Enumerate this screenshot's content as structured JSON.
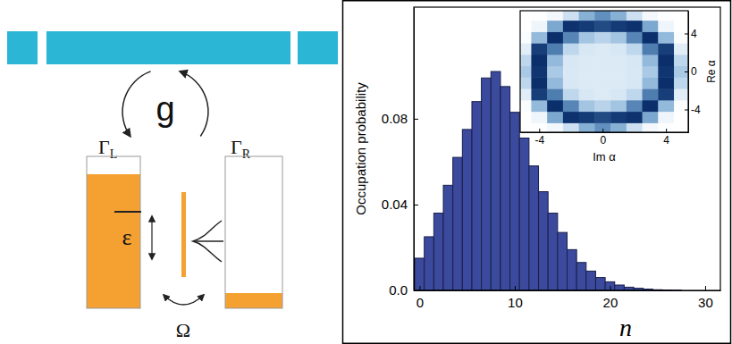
{
  "diagram": {
    "coupling": "g",
    "left_rate": {
      "symbol": "Γ",
      "sub": "L"
    },
    "right_rate": {
      "symbol": "Γ",
      "sub": "R"
    },
    "detuning": "ε",
    "tunneling": "Ω"
  },
  "chart_data": [
    {
      "type": "histogram",
      "x_label": "n",
      "y_label": "Occupation probability",
      "color": "#3b4a9c",
      "bins": [
        -0.5,
        0.5,
        1.5,
        2.5,
        3.5,
        4.5,
        5.5,
        6.5,
        7.5,
        8.5,
        9.5,
        10.5,
        11.5,
        12.5,
        13.5,
        14.5,
        15.5,
        16.5,
        17.5,
        18.5,
        19.5,
        20.5,
        21.5,
        22.5,
        23.5,
        24.5,
        25.5,
        26.5,
        27.5,
        28.5,
        29.5
      ],
      "values": [
        0.015,
        0.025,
        0.036,
        0.049,
        0.062,
        0.075,
        0.088,
        0.099,
        0.102,
        0.095,
        0.083,
        0.071,
        0.058,
        0.046,
        0.036,
        0.027,
        0.019,
        0.013,
        0.009,
        0.006,
        0.004,
        0.0025,
        0.0015,
        0.001,
        0.0006,
        0.0003,
        0.0002,
        0.0001,
        0,
        0
      ],
      "xlim": [
        -0.6,
        31.6
      ],
      "ylim": [
        0,
        0.132
      ],
      "xticks": [
        0,
        10,
        20,
        30
      ],
      "yticks": [
        {
          "value": 0,
          "label": "0.0"
        },
        0.04,
        0.08
      ]
    },
    {
      "type": "heatmap",
      "x_label": "Im α",
      "y_label": "Re α",
      "x": [
        -5,
        -4,
        -3,
        -2,
        -1,
        0,
        1,
        2,
        3,
        4,
        5
      ],
      "y": [
        -6,
        -4.8,
        -3.6,
        -2.4,
        -1.2,
        0,
        1.2,
        2.4,
        3.6,
        4.8,
        6
      ],
      "values": [
        [
          0,
          0.01,
          0.07,
          0.27,
          0.53,
          0.66,
          0.53,
          0.27,
          0.07,
          0.01,
          0
        ],
        [
          0,
          0.09,
          0.57,
          0.98,
          0.95,
          0.9,
          0.95,
          0.98,
          0.57,
          0.09,
          0
        ],
        [
          0.03,
          0.49,
          0.99,
          0.7,
          0.43,
          0.35,
          0.43,
          0.7,
          0.99,
          0.49,
          0.03
        ],
        [
          0.17,
          0.94,
          0.73,
          0.33,
          0.22,
          0.2,
          0.22,
          0.33,
          0.73,
          0.94,
          0.17
        ],
        [
          0.33,
          0.99,
          0.49,
          0.22,
          0.2,
          0.2,
          0.2,
          0.22,
          0.49,
          0.99,
          0.33
        ],
        [
          0.41,
          0.97,
          0.41,
          0.21,
          0.2,
          0.2,
          0.2,
          0.21,
          0.41,
          0.97,
          0.41
        ],
        [
          0.33,
          0.99,
          0.49,
          0.22,
          0.2,
          0.2,
          0.2,
          0.22,
          0.49,
          0.99,
          0.33
        ],
        [
          0.17,
          0.94,
          0.73,
          0.33,
          0.22,
          0.2,
          0.22,
          0.33,
          0.73,
          0.94,
          0.17
        ],
        [
          0.03,
          0.49,
          0.99,
          0.7,
          0.43,
          0.35,
          0.43,
          0.7,
          0.99,
          0.49,
          0.03
        ],
        [
          0,
          0.09,
          0.57,
          0.98,
          0.95,
          0.9,
          0.95,
          0.98,
          0.57,
          0.09,
          0
        ],
        [
          0,
          0.01,
          0.07,
          0.27,
          0.53,
          0.66,
          0.53,
          0.27,
          0.07,
          0.01,
          0
        ]
      ],
      "xlim": [
        -5.2,
        5.4
      ],
      "ylim": [
        -6.4,
        6.4
      ],
      "xticks": [
        -4,
        0,
        4
      ],
      "yticks": [
        -4,
        0,
        4
      ]
    }
  ]
}
